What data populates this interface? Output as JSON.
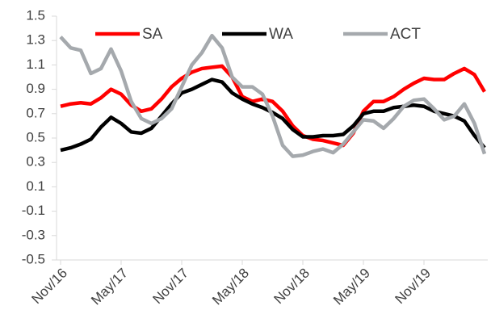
{
  "chart_data": {
    "type": "line",
    "categories": [
      "Nov/16",
      null,
      null,
      null,
      null,
      null,
      "May/17",
      null,
      null,
      null,
      null,
      null,
      "Nov/17",
      null,
      null,
      null,
      null,
      null,
      "May/18",
      null,
      null,
      null,
      null,
      null,
      "Nov/18",
      null,
      null,
      null,
      null,
      null,
      "May/19",
      null,
      null,
      null,
      null,
      null,
      "Nov/19",
      null,
      null,
      null,
      null,
      null,
      null
    ],
    "series": [
      {
        "name": "SA",
        "color": "#ff0000",
        "values": [
          0.76,
          0.78,
          0.79,
          0.78,
          0.83,
          0.9,
          0.86,
          0.77,
          0.72,
          0.74,
          0.82,
          0.92,
          0.99,
          1.04,
          1.07,
          1.08,
          1.09,
          1.0,
          0.84,
          0.8,
          0.82,
          0.8,
          0.72,
          0.6,
          0.52,
          0.49,
          0.48,
          0.46,
          0.44,
          0.54,
          0.72,
          0.8,
          0.8,
          0.84,
          0.9,
          0.95,
          0.99,
          0.98,
          0.98,
          1.03,
          1.07,
          1.02,
          0.88
        ]
      },
      {
        "name": "WA",
        "color": "#000000",
        "values": [
          0.4,
          0.42,
          0.45,
          0.49,
          0.59,
          0.67,
          0.62,
          0.55,
          0.54,
          0.58,
          0.68,
          0.78,
          0.87,
          0.9,
          0.94,
          0.98,
          0.96,
          0.87,
          0.82,
          0.78,
          0.75,
          0.71,
          0.66,
          0.57,
          0.51,
          0.51,
          0.52,
          0.52,
          0.53,
          0.6,
          0.7,
          0.72,
          0.72,
          0.75,
          0.76,
          0.77,
          0.76,
          0.72,
          0.7,
          0.68,
          0.64,
          0.52,
          0.42
        ]
      },
      {
        "name": "ACT",
        "color": "#a5a9ad",
        "values": [
          1.33,
          1.24,
          1.22,
          1.03,
          1.07,
          1.23,
          1.05,
          0.8,
          0.66,
          0.62,
          0.66,
          0.74,
          0.92,
          1.1,
          1.2,
          1.34,
          1.24,
          1.0,
          0.92,
          0.92,
          0.86,
          0.68,
          0.44,
          0.35,
          0.36,
          0.39,
          0.41,
          0.38,
          0.45,
          0.55,
          0.65,
          0.64,
          0.58,
          0.66,
          0.76,
          0.81,
          0.82,
          0.74,
          0.65,
          0.68,
          0.78,
          0.62,
          0.37
        ]
      }
    ],
    "ylim": [
      -0.5,
      1.5
    ],
    "yticks": [
      -0.5,
      -0.3,
      -0.1,
      0.1,
      0.3,
      0.5,
      0.7,
      0.9,
      1.1,
      1.3,
      1.5
    ],
    "grid": false
  }
}
